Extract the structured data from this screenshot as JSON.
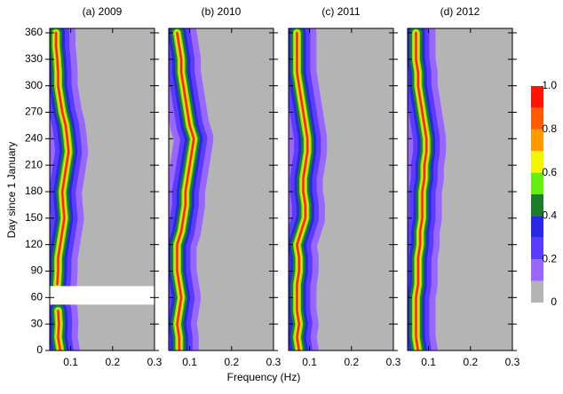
{
  "chart_data": {
    "type": "heatmap",
    "xlabel": "Frequency (Hz)",
    "ylabel": "Day since 1 January",
    "xlim": [
      0.05,
      0.3
    ],
    "xticks": [
      0.1,
      0.2,
      0.3
    ],
    "ylim": [
      0,
      365
    ],
    "yticks": [
      0,
      30,
      60,
      90,
      120,
      150,
      180,
      210,
      240,
      270,
      300,
      330,
      360
    ],
    "days": [
      0,
      15,
      30,
      45,
      60,
      75,
      90,
      105,
      120,
      135,
      150,
      165,
      180,
      195,
      210,
      225,
      240,
      255,
      270,
      285,
      300,
      315,
      330,
      345,
      360
    ],
    "panels": [
      {
        "title": "(a)  2009",
        "missing_days": [
          52,
          73
        ],
        "frequency": [
          0.075,
          0.07,
          0.072,
          0.07,
          null,
          0.068,
          0.07,
          0.07,
          0.075,
          0.08,
          0.085,
          0.082,
          0.08,
          0.085,
          0.09,
          0.095,
          0.092,
          0.088,
          0.08,
          0.075,
          0.07,
          0.07,
          0.068,
          0.065,
          0.065
        ]
      },
      {
        "title": "(b)  2010",
        "frequency": [
          0.075,
          0.075,
          0.07,
          0.075,
          0.08,
          0.075,
          0.07,
          0.07,
          0.07,
          0.08,
          0.085,
          0.09,
          0.09,
          0.095,
          0.1,
          0.105,
          0.11,
          0.1,
          0.095,
          0.09,
          0.085,
          0.08,
          0.08,
          0.075,
          0.07
        ]
      },
      {
        "title": "(c)  2011",
        "frequency": [
          0.075,
          0.07,
          0.075,
          0.07,
          0.07,
          0.07,
          0.075,
          0.075,
          0.07,
          0.08,
          0.09,
          0.09,
          0.085,
          0.085,
          0.09,
          0.095,
          0.095,
          0.09,
          0.085,
          0.08,
          0.075,
          0.07,
          0.07,
          0.07,
          0.07
        ]
      },
      {
        "title": "(d)  2012",
        "frequency": [
          0.075,
          0.07,
          0.07,
          0.07,
          0.07,
          0.075,
          0.075,
          0.075,
          0.08,
          0.08,
          0.085,
          0.085,
          0.085,
          0.09,
          0.09,
          0.095,
          0.095,
          0.09,
          0.085,
          0.08,
          0.075,
          0.075,
          0.07,
          0.07,
          0.07
        ]
      }
    ],
    "colorbar": {
      "levels": [
        0,
        0.1,
        0.2,
        0.3,
        0.4,
        0.5,
        0.6,
        0.7,
        0.8,
        0.9,
        1
      ],
      "colors": [
        "#b4b4b4",
        "#9966ff",
        "#5a3cff",
        "#2828e6",
        "#1e7d28",
        "#66ee11",
        "#f5f500",
        "#ff9a00",
        "#ff5a00",
        "#ff1400"
      ],
      "ticks": [
        0,
        0.2,
        0.4,
        0.6,
        0.8,
        {
          "value": 1,
          "label": "1.0"
        }
      ]
    }
  }
}
